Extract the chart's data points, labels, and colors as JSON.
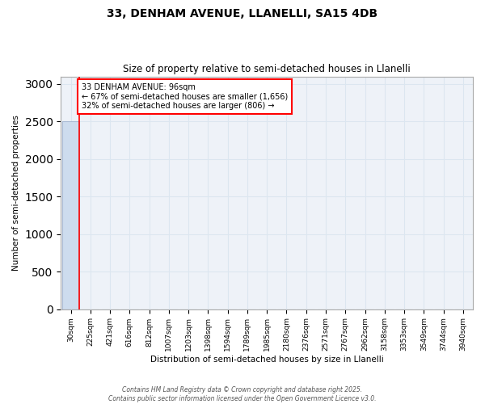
{
  "title1": "33, DENHAM AVENUE, LLANELLI, SA15 4DB",
  "title2": "Size of property relative to semi-detached houses in Llanelli",
  "xlabel": "Distribution of semi-detached houses by size in Llanelli",
  "ylabel": "Number of semi-detached properties",
  "bar_labels": [
    "30sqm",
    "225sqm",
    "421sqm",
    "616sqm",
    "812sqm",
    "1007sqm",
    "1203sqm",
    "1398sqm",
    "1594sqm",
    "1789sqm",
    "1985sqm",
    "2180sqm",
    "2376sqm",
    "2571sqm",
    "2767sqm",
    "2962sqm",
    "3158sqm",
    "3353sqm",
    "3549sqm",
    "3744sqm",
    "3940sqm"
  ],
  "bar_values": [
    2500,
    0,
    0,
    0,
    0,
    0,
    0,
    0,
    0,
    0,
    0,
    0,
    0,
    0,
    0,
    0,
    0,
    0,
    0,
    0,
    0
  ],
  "bar_color": "#cddcee",
  "bar_edge_color": "#aabbd4",
  "ylim": [
    0,
    3100
  ],
  "yticks": [
    0,
    500,
    1000,
    1500,
    2000,
    2500,
    3000
  ],
  "red_line_x": 0.45,
  "annotation_title": "33 DENHAM AVENUE: 96sqm",
  "annotation_line1": "← 67% of semi-detached houses are smaller (1,656)",
  "annotation_line2": "32% of semi-detached houses are larger (806) →",
  "footer": "Contains HM Land Registry data © Crown copyright and database right 2025.\nContains public sector information licensed under the Open Government Licence v3.0.",
  "grid_color": "#dce6f0",
  "background_color": "#eef2f8"
}
